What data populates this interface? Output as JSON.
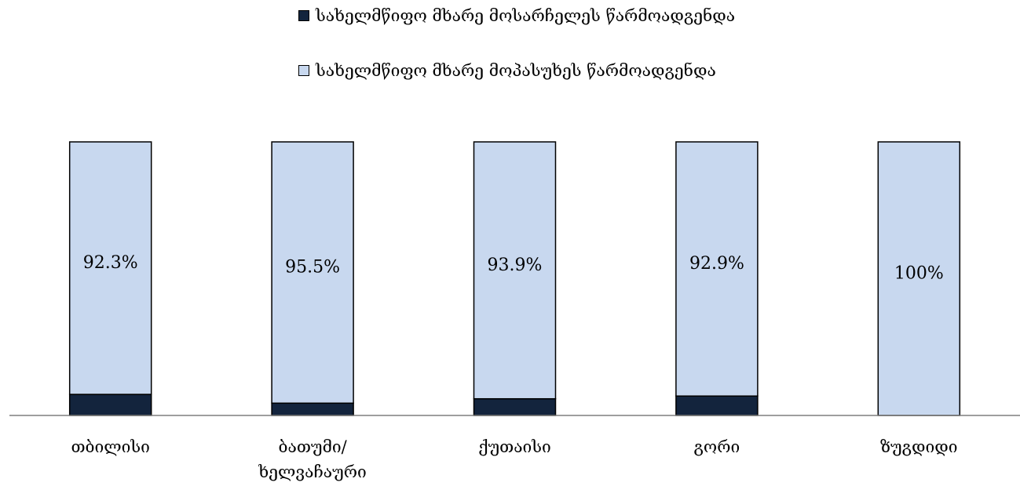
{
  "colors": {
    "defendant": "#13243d",
    "respondent": "#c8d8ef",
    "outline": "#000000",
    "axis": "#7f7f7f"
  },
  "chart_data": {
    "type": "bar",
    "stacked": true,
    "categories": [
      "თბილისი",
      "ბათუმი/ ხელვაჩაური",
      "ქუთაისი",
      "გორი",
      "ზუგდიდი"
    ],
    "category_lines": [
      [
        "თბილისი"
      ],
      [
        "ბათუმი/",
        "ხელვაჩაური"
      ],
      [
        "ქუთაისი"
      ],
      [
        "გორი"
      ],
      [
        "ზუგდიდი"
      ]
    ],
    "ylim": [
      0,
      100
    ],
    "grid": false,
    "legend_position": "top",
    "series": [
      {
        "name": "სახელმწიფო მხარე მოსარჩელეს წარმოადგენდა",
        "values": [
          7.7,
          4.5,
          6.1,
          7.1,
          0
        ],
        "data_labels": [
          "",
          "",
          "",
          "",
          ""
        ]
      },
      {
        "name": "სახელმწიფო მხარე მოპასუხეს წარმოადგენდა",
        "values": [
          92.3,
          95.5,
          93.9,
          92.9,
          100
        ],
        "data_labels": [
          "92.3%",
          "95.5%",
          "93.9%",
          "92.9%",
          "100%"
        ]
      }
    ]
  }
}
